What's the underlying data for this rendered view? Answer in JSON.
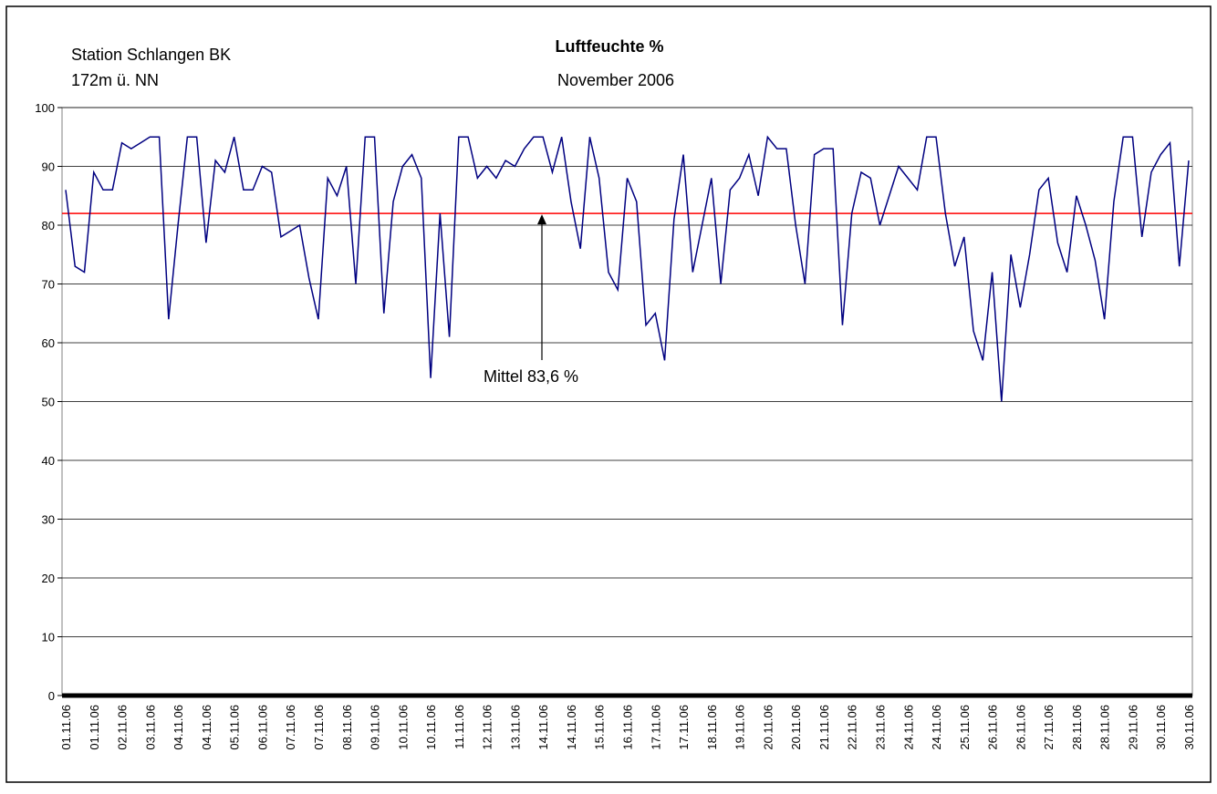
{
  "chart_data": {
    "type": "line",
    "station": "Station Schlangen BK",
    "altitude": "172m ü. NN",
    "title": "Luftfeuchte %",
    "subtitle": "November 2006",
    "annotation": "Mittel 83,6 %",
    "reference_line": {
      "value": 82,
      "color": "#ff0000"
    },
    "categories": [
      "01.11.06",
      null,
      null,
      "01.11.06",
      null,
      null,
      "02.11.06",
      null,
      null,
      "03.11.06",
      null,
      null,
      "04.11.06",
      null,
      null,
      "04.11.06",
      null,
      null,
      "05.11.06",
      null,
      null,
      "06.11.06",
      null,
      null,
      "07.11.06",
      null,
      null,
      "07.11.06",
      null,
      null,
      "08.11.06",
      null,
      null,
      "09.11.06",
      null,
      null,
      "10.11.06",
      null,
      null,
      "10.11.06",
      null,
      null,
      "11.11.06",
      null,
      null,
      "12.11.06",
      null,
      null,
      "13.11.06",
      null,
      null,
      "14.11.06",
      null,
      null,
      "14.11.06",
      null,
      null,
      "15.11.06",
      null,
      null,
      "16.11.06",
      null,
      null,
      "17.11.06",
      null,
      null,
      "17.11.06",
      null,
      null,
      "18.11.06",
      null,
      null,
      "19.11.06",
      null,
      null,
      "20.11.06",
      null,
      null,
      "20.11.06",
      null,
      null,
      "21.11.06",
      null,
      null,
      "22.11.06",
      null,
      null,
      "23.11.06",
      null,
      null,
      "24.11.06",
      null,
      null,
      "24.11.06",
      null,
      null,
      "25.11.06",
      null,
      null,
      "26.11.06",
      null,
      null,
      "26.11.06",
      null,
      null,
      "27.11.06",
      null,
      null,
      "28.11.06",
      null,
      null,
      "28.11.06",
      null,
      null,
      "29.11.06",
      null,
      null,
      "30.11.06",
      null,
      null,
      "30.11.06"
    ],
    "series": [
      {
        "color": "#000080",
        "values": [
          86,
          73,
          72,
          89,
          86,
          86,
          94,
          93,
          94,
          95,
          95,
          64,
          80,
          95,
          95,
          77,
          91,
          89,
          95,
          86,
          86,
          90,
          89,
          78,
          79,
          80,
          71,
          64,
          88,
          85,
          90,
          70,
          95,
          95,
          65,
          84,
          90,
          92,
          88,
          54,
          82,
          61,
          95,
          95,
          88,
          90,
          88,
          91,
          90,
          93,
          95,
          95,
          89,
          95,
          84,
          76,
          95,
          88,
          72,
          69,
          88,
          84,
          63,
          65,
          57,
          81,
          92,
          72,
          80,
          88,
          70,
          86,
          88,
          92,
          85,
          95,
          93,
          93,
          80,
          70,
          92,
          93,
          93,
          63,
          82,
          89,
          88,
          80,
          85,
          90,
          88,
          86,
          95,
          95,
          82,
          73,
          78,
          62,
          57,
          72,
          50,
          75,
          66,
          75,
          86,
          88,
          77,
          72,
          85,
          80,
          74,
          64,
          84,
          95,
          95,
          78,
          89,
          92,
          94,
          73,
          91
        ]
      }
    ],
    "ylim": [
      0,
      100
    ],
    "yticks": [
      0,
      10,
      20,
      30,
      40,
      50,
      60,
      70,
      80,
      90,
      100
    ],
    "grid": true
  }
}
